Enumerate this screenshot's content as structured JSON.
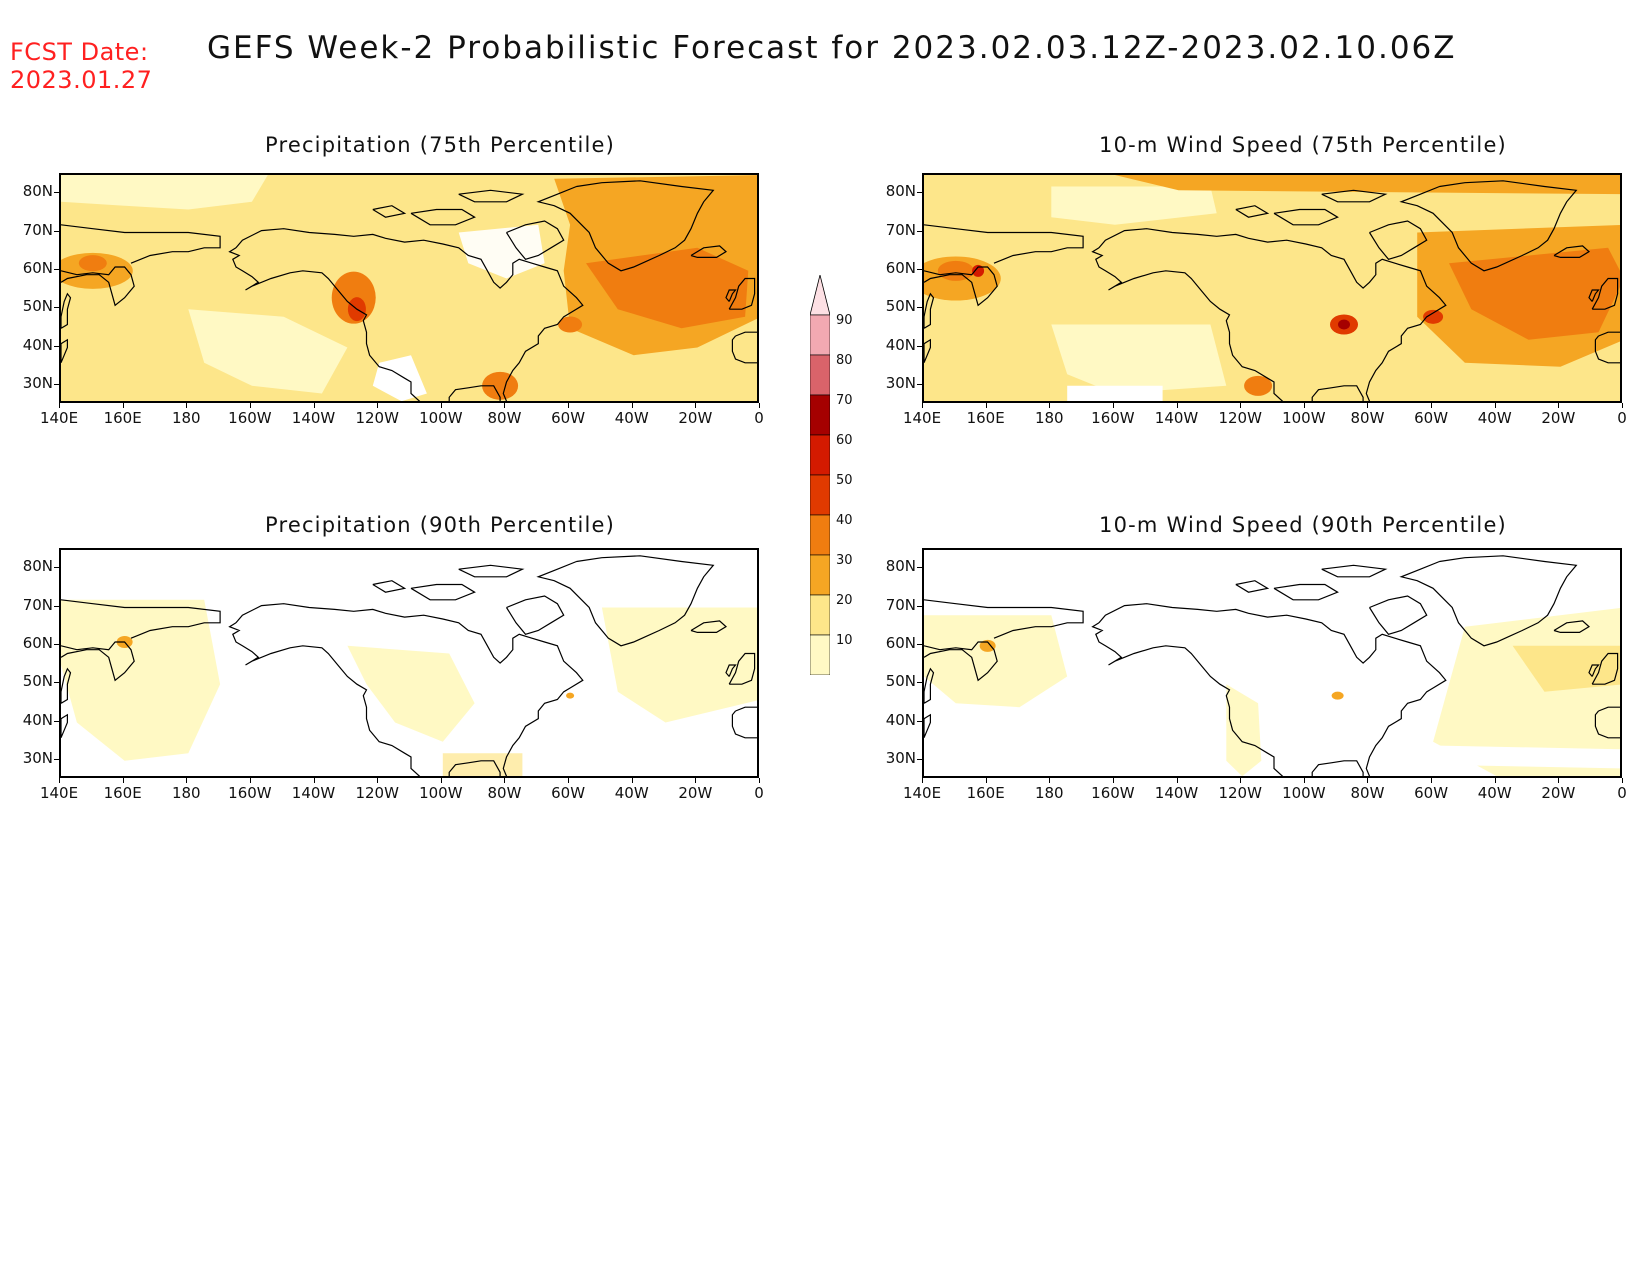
{
  "header": {
    "fcst_label": "FCST Date:",
    "fcst_date": "2023.01.27",
    "title": "GEFS Week-2 Probabilistic Forecast for 2023.02.03.12Z-2023.02.10.06Z"
  },
  "axes": {
    "lat_labels": [
      "80N",
      "70N",
      "60N",
      "50N",
      "40N",
      "30N"
    ],
    "lon_labels": [
      "140E",
      "160E",
      "180",
      "160W",
      "140W",
      "120W",
      "100W",
      "80W",
      "60W",
      "40W",
      "20W",
      "0"
    ]
  },
  "panels": [
    {
      "id": "p75",
      "title": "Precipitation (75th Percentile)"
    },
    {
      "id": "w75",
      "title": "10-m Wind Speed (75th Percentile)"
    },
    {
      "id": "p90",
      "title": "Precipitation (90th Percentile)"
    },
    {
      "id": "w90",
      "title": "10-m Wind Speed (90th Percentile)"
    }
  ],
  "colorbar": {
    "levels": [
      {
        "value": "10",
        "color": "#fff9c4"
      },
      {
        "value": "20",
        "color": "#fde68a"
      },
      {
        "value": "30",
        "color": "#f5a623"
      },
      {
        "value": "40",
        "color": "#f07d10"
      },
      {
        "value": "50",
        "color": "#e03a00"
      },
      {
        "value": "60",
        "color": "#d41a00"
      },
      {
        "value": "70",
        "color": "#a50000"
      },
      {
        "value": "80",
        "color": "#d9636a"
      },
      {
        "value": "90",
        "color": "#f2a9b2"
      }
    ],
    "top_color": "#fde0e4"
  }
}
